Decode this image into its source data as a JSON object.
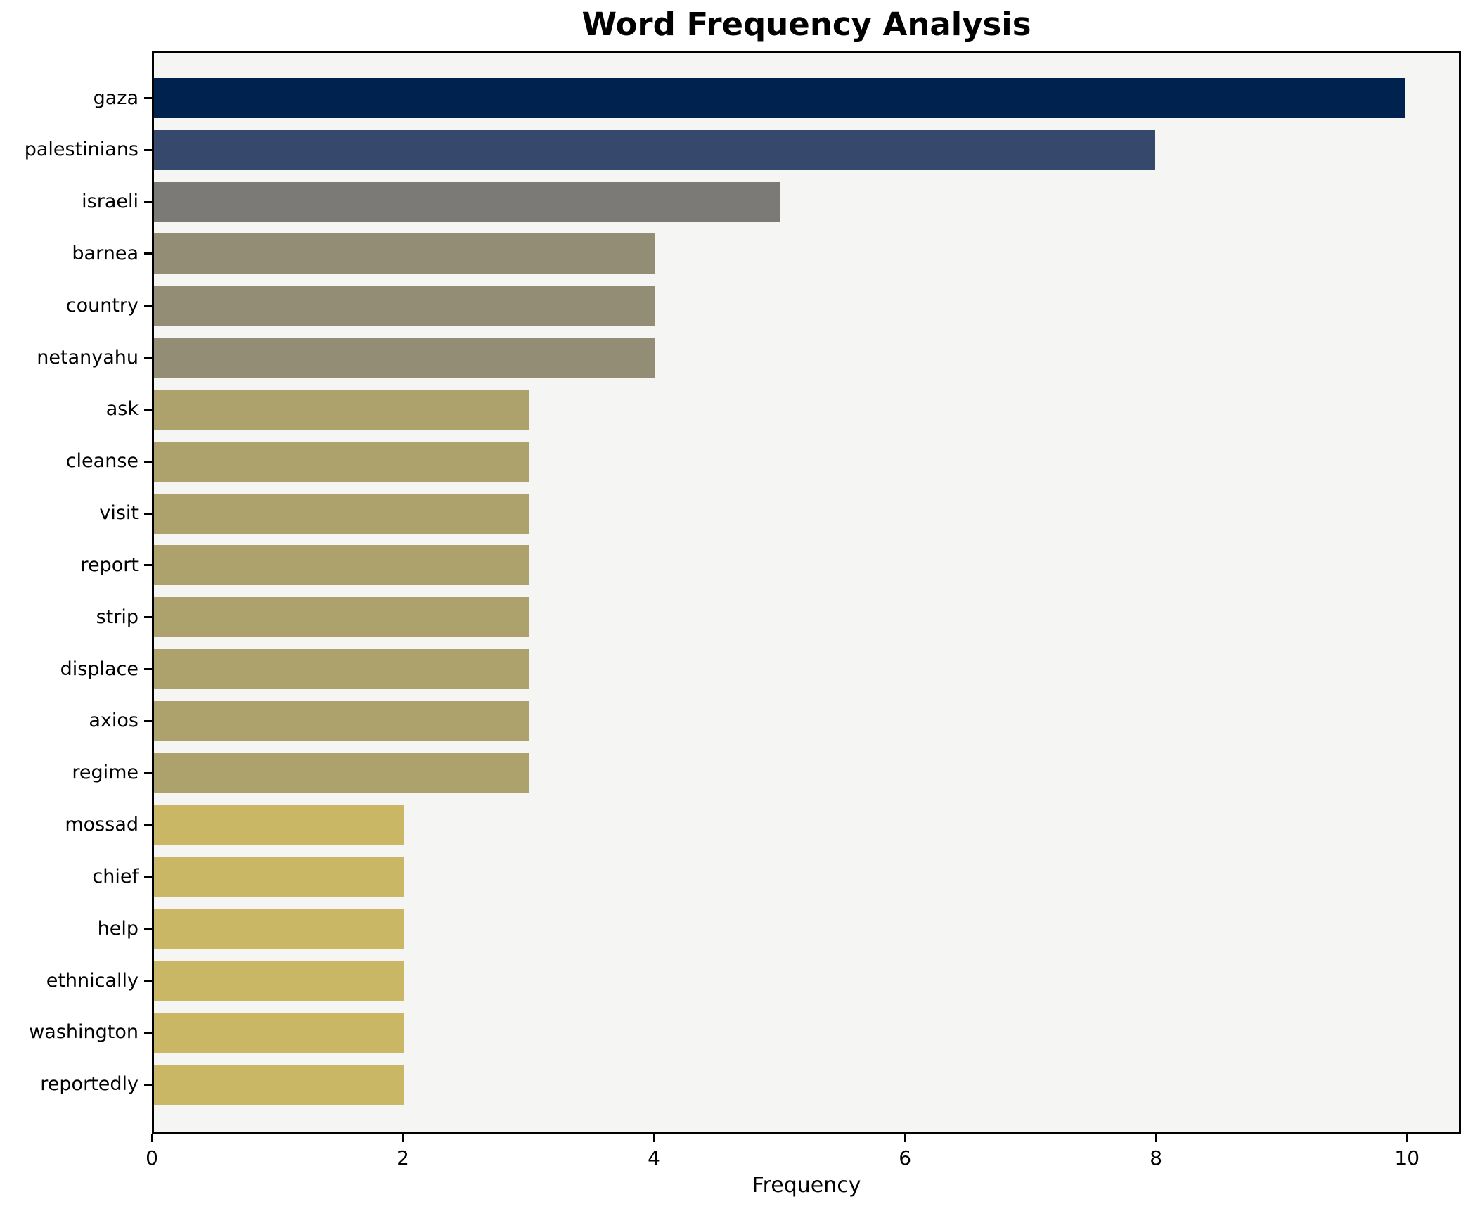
{
  "chart_data": {
    "type": "bar",
    "orientation": "horizontal",
    "title": "Word Frequency Analysis",
    "xlabel": "Frequency",
    "ylabel": "",
    "categories": [
      "gaza",
      "palestinians",
      "israeli",
      "barnea",
      "country",
      "netanyahu",
      "ask",
      "cleanse",
      "visit",
      "report",
      "strip",
      "displace",
      "axios",
      "regime",
      "mossad",
      "chief",
      "help",
      "ethnically",
      "washington",
      "reportedly"
    ],
    "values": [
      10,
      8,
      5,
      4,
      4,
      4,
      3,
      3,
      3,
      3,
      3,
      3,
      3,
      3,
      2,
      2,
      2,
      2,
      2,
      2
    ],
    "bar_colors": [
      "#00224e",
      "#36486b",
      "#7b7a76",
      "#948d75",
      "#948d75",
      "#948d75",
      "#ada26c",
      "#ada26c",
      "#ada26c",
      "#ada26c",
      "#ada26c",
      "#ada26c",
      "#ada26c",
      "#ada26c",
      "#c9b765",
      "#c9b765",
      "#c9b765",
      "#c9b765",
      "#c9b765",
      "#c9b765"
    ],
    "xticks": [
      0,
      2,
      4,
      6,
      8,
      10
    ],
    "xlim": [
      0,
      10.43
    ],
    "grid": false,
    "legend": false,
    "plot_background": "#f5f5f4",
    "figure_background": "#ffffff",
    "axis_color": "#000000"
  }
}
